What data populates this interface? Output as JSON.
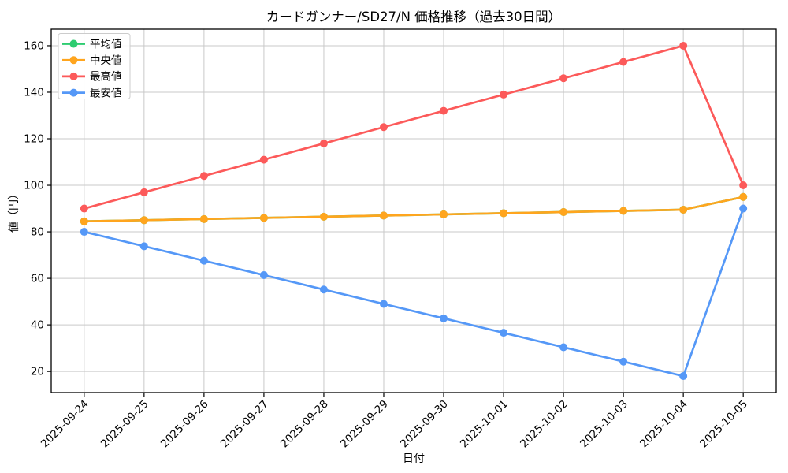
{
  "colors": {
    "background": "#ffffff",
    "grid": "#c9c9c9",
    "spine": "#000000",
    "tick": "#000000",
    "legend_border": "#cccccc",
    "legend_background": "#ffffff",
    "series_average": "#2dcc70",
    "series_median": "#ffa51e",
    "series_max": "#fc5a5a",
    "series_min": "#5598f7"
  },
  "chart_data": {
    "type": "line",
    "title": "カードガンナー/SD27/N 価格推移（過去30日間）",
    "xlabel": "日付",
    "ylabel": "値（円）",
    "grid": true,
    "legend_position": "upper left",
    "x": [
      "2025-09-24",
      "2025-09-25",
      "2025-09-26",
      "2025-09-27",
      "2025-09-28",
      "2025-09-29",
      "2025-09-30",
      "2025-10-01",
      "2025-10-02",
      "2025-10-03",
      "2025-10-04",
      "2025-10-05"
    ],
    "yticks": [
      20,
      40,
      60,
      80,
      100,
      120,
      140,
      160
    ],
    "ylim": [
      10.9,
      167.1
    ],
    "series": [
      {
        "key": "average",
        "name": "平均値",
        "color": "#2dcc70",
        "marker": "circle",
        "values": [
          84.5,
          85,
          85.5,
          86,
          86.5,
          87,
          87.5,
          88,
          88.5,
          89,
          89.5,
          95
        ]
      },
      {
        "key": "median",
        "name": "中央値",
        "color": "#ffa51e",
        "marker": "circle",
        "values": [
          84.5,
          85,
          85.5,
          86,
          86.5,
          87,
          87.5,
          88,
          88.5,
          89,
          89.5,
          95
        ]
      },
      {
        "key": "max",
        "name": "最高値",
        "color": "#fc5a5a",
        "marker": "circle",
        "values": [
          90,
          97,
          104,
          111,
          118,
          125,
          132,
          139,
          146,
          153,
          160,
          100
        ]
      },
      {
        "key": "min",
        "name": "最安値",
        "color": "#5598f7",
        "marker": "circle",
        "values": [
          80,
          73.8,
          67.6,
          61.4,
          55.2,
          49,
          42.8,
          36.6,
          30.4,
          24.2,
          18,
          90
        ]
      }
    ]
  }
}
